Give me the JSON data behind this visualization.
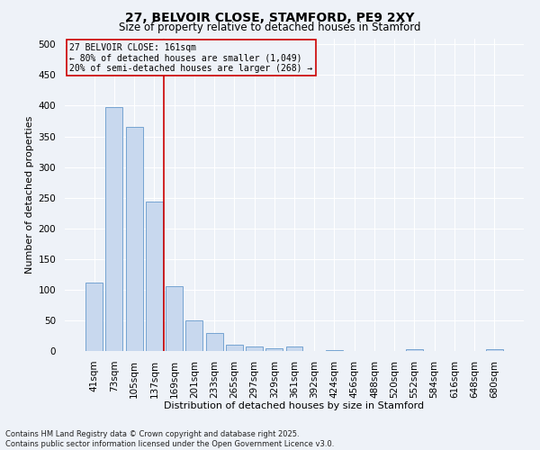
{
  "title1": "27, BELVOIR CLOSE, STAMFORD, PE9 2XY",
  "title2": "Size of property relative to detached houses in Stamford",
  "xlabel": "Distribution of detached houses by size in Stamford",
  "ylabel": "Number of detached properties",
  "categories": [
    "41sqm",
    "73sqm",
    "105sqm",
    "137sqm",
    "169sqm",
    "201sqm",
    "233sqm",
    "265sqm",
    "297sqm",
    "329sqm",
    "361sqm",
    "392sqm",
    "424sqm",
    "456sqm",
    "488sqm",
    "520sqm",
    "552sqm",
    "584sqm",
    "616sqm",
    "648sqm",
    "680sqm"
  ],
  "values": [
    112,
    397,
    365,
    243,
    105,
    50,
    30,
    10,
    7,
    4,
    7,
    0,
    2,
    0,
    0,
    0,
    3,
    0,
    0,
    0,
    3
  ],
  "bar_color": "#c8d8ee",
  "bar_edge_color": "#6699cc",
  "vline_index": 4,
  "vline_color": "#cc0000",
  "annotation_text": "27 BELVOIR CLOSE: 161sqm\n← 80% of detached houses are smaller (1,049)\n20% of semi-detached houses are larger (268) →",
  "ylim": [
    0,
    510
  ],
  "yticks": [
    0,
    50,
    100,
    150,
    200,
    250,
    300,
    350,
    400,
    450,
    500
  ],
  "footer_text": "Contains HM Land Registry data © Crown copyright and database right 2025.\nContains public sector information licensed under the Open Government Licence v3.0.",
  "bg_color": "#eef2f8",
  "grid_color": "#ffffff",
  "box_edge_color": "#cc0000",
  "title_fontsize": 10,
  "subtitle_fontsize": 8.5,
  "axis_label_fontsize": 8,
  "tick_fontsize": 7.5,
  "annotation_fontsize": 7,
  "footer_fontsize": 6
}
